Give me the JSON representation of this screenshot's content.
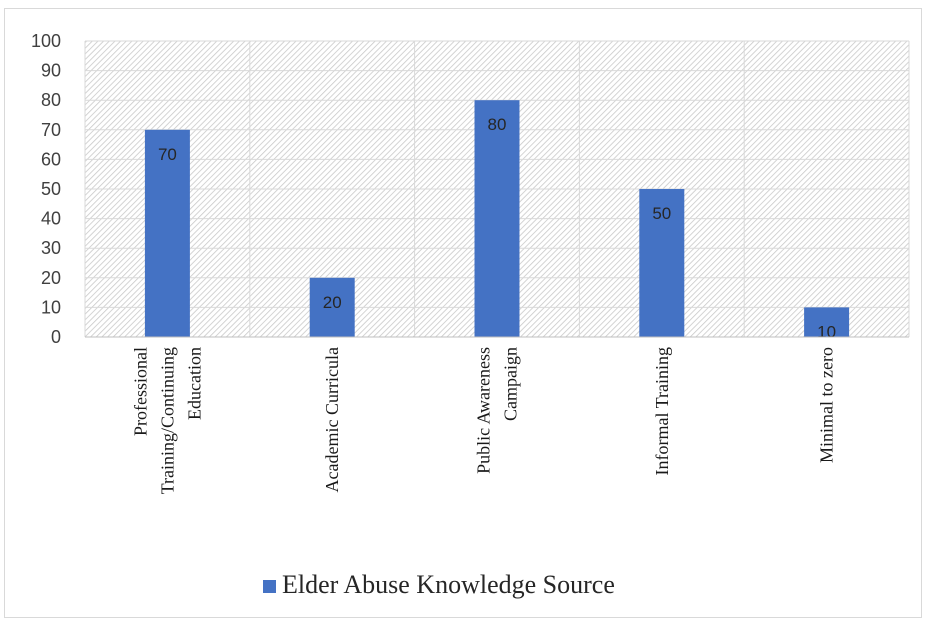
{
  "chart_data": {
    "type": "bar",
    "title": "",
    "xlabel": "",
    "ylabel": "",
    "categories": [
      [
        "Professional",
        "Training/Continuing",
        "Education"
      ],
      [
        "Academic Curricula"
      ],
      [
        "Public Awareness",
        "Campaign"
      ],
      [
        "Informal Training"
      ],
      [
        "Minimal to zero"
      ]
    ],
    "series": [
      {
        "name": "Elder Abuse Knowledge Source",
        "values": [
          70,
          20,
          80,
          50,
          10
        ],
        "color": "#4472C4"
      }
    ],
    "data_labels": [
      "70",
      "20",
      "80",
      "50",
      "10"
    ],
    "ylim": [
      0,
      100
    ],
    "yticks": [
      0,
      10,
      20,
      30,
      40,
      50,
      60,
      70,
      80,
      90,
      100
    ],
    "grid": true,
    "legend_position": "bottom",
    "plot_background": "hatched"
  }
}
